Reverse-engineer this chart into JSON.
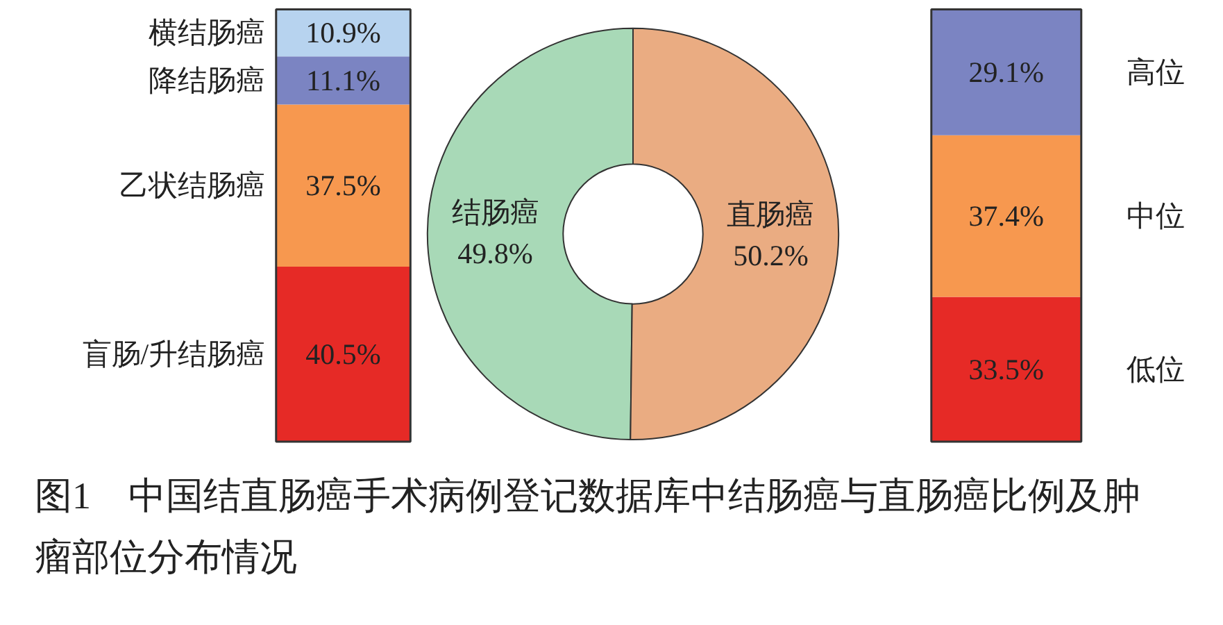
{
  "chart_data": [
    {
      "type": "bar",
      "stacked": true,
      "categories": [
        null
      ],
      "series": [
        {
          "name": "盲肠/升结肠癌",
          "color": "#e62a26",
          "values": [
            40.5
          ],
          "value_labels": [
            "40.5%"
          ]
        },
        {
          "name": "乙状结肠癌",
          "color": "#f7984f",
          "values": [
            37.5
          ],
          "value_labels": [
            "37.5%"
          ]
        },
        {
          "name": "降结肠癌",
          "color": "#7b84c2",
          "values": [
            11.1
          ],
          "value_labels": [
            "11.1%"
          ]
        },
        {
          "name": "横结肠癌",
          "color": "#b7d3ef",
          "values": [
            10.9
          ],
          "value_labels": [
            "10.9%"
          ]
        }
      ]
    },
    {
      "type": "donut",
      "categories": [
        "结肠癌",
        "直肠癌"
      ],
      "values": [
        49.8,
        50.2
      ],
      "colors": [
        "#a8d9b7",
        "#eaac82"
      ],
      "value_labels": [
        "49.8%",
        "50.2%"
      ]
    },
    {
      "type": "bar",
      "stacked": true,
      "categories": [
        null
      ],
      "series": [
        {
          "name": "低位",
          "color": "#e62a26",
          "values": [
            33.5
          ],
          "value_labels": [
            "33.5%"
          ]
        },
        {
          "name": "中位",
          "color": "#f7984f",
          "values": [
            37.4
          ],
          "value_labels": [
            "37.4%"
          ]
        },
        {
          "name": "高位",
          "color": "#7b84c2",
          "values": [
            29.1
          ],
          "value_labels": [
            "29.1%"
          ]
        }
      ]
    },
    {
      "type": "other",
      "annotations": [
        "图1　中国结直肠癌手术病例登记数据库中结肠癌与直肠癌比例及肿瘤部位分布情况"
      ]
    }
  ]
}
